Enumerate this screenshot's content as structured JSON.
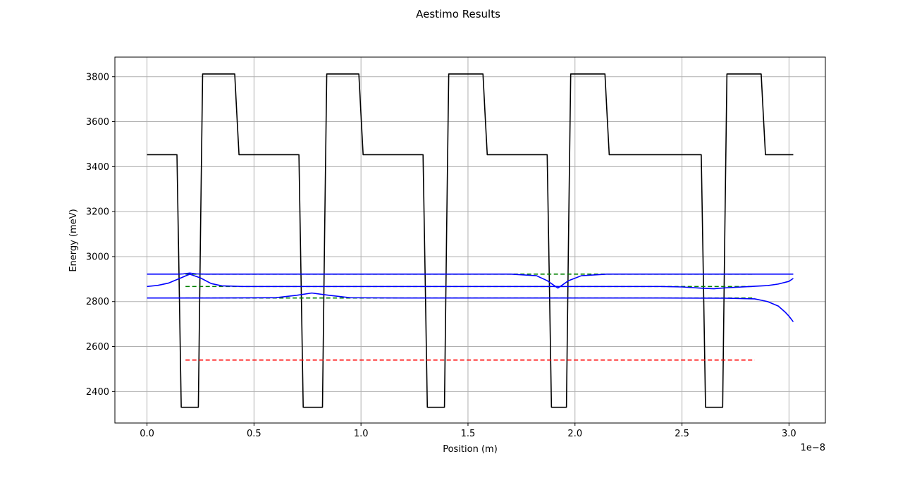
{
  "chart_data": {
    "type": "line",
    "title": "Aestimo Results",
    "xlabel": "Position (m)",
    "ylabel": "Energy (meV)",
    "x_offset_text": "1e−8",
    "xlim": [
      -0.15,
      3.17
    ],
    "ylim": [
      2260,
      3887
    ],
    "xticks": [
      0.0,
      0.5,
      1.0,
      1.5,
      2.0,
      2.5,
      3.0
    ],
    "xtick_labels": [
      "0.0",
      "0.5",
      "1.0",
      "1.5",
      "2.0",
      "2.5",
      "3.0"
    ],
    "yticks": [
      2400,
      2600,
      2800,
      3000,
      3200,
      3400,
      3600,
      3800
    ],
    "ytick_labels": [
      "2400",
      "2600",
      "2800",
      "3000",
      "3200",
      "3400",
      "3600",
      "3800"
    ],
    "grid": true,
    "colors": {
      "potential": "#000000",
      "wavefunction": "#0000ff",
      "level": "#008000",
      "fermi": "#ff0000",
      "grid": "#b0b0b0"
    },
    "series": [
      {
        "role": "potential",
        "style": "solid",
        "x": [
          0.0,
          0.14,
          0.15,
          0.16,
          0.24,
          0.25,
          0.26,
          0.41,
          0.42,
          0.43,
          0.71,
          0.72,
          0.73,
          0.82,
          0.83,
          0.84,
          0.99,
          1.0,
          1.01,
          1.29,
          1.3,
          1.31,
          1.39,
          1.4,
          1.41,
          1.57,
          1.58,
          1.59,
          1.87,
          1.88,
          1.89,
          1.96,
          1.97,
          1.98,
          2.14,
          2.15,
          2.16,
          2.59,
          2.6,
          2.61,
          2.69,
          2.7,
          2.71,
          2.87,
          2.88,
          2.89,
          3.02
        ],
        "y": [
          3453,
          3453,
          2900,
          2330,
          2330,
          3100,
          3812,
          3812,
          3630,
          3453,
          3453,
          2900,
          2330,
          2330,
          3100,
          3812,
          3812,
          3630,
          3453,
          3453,
          2900,
          2330,
          2330,
          3100,
          3812,
          3812,
          3630,
          3453,
          3453,
          2900,
          2330,
          2330,
          3100,
          3812,
          3812,
          3630,
          3453,
          3453,
          2900,
          2330,
          2330,
          3100,
          3812,
          3812,
          3630,
          3453,
          3453
        ]
      },
      {
        "role": "level",
        "style": "dashed",
        "x": [
          0.18,
          2.84
        ],
        "y": [
          2540,
          2540
        ],
        "color": "#ff0000"
      },
      {
        "role": "level",
        "style": "dashed",
        "x": [
          0.18,
          2.84
        ],
        "y": [
          2816,
          2816
        ],
        "color": "#008000"
      },
      {
        "role": "level",
        "style": "dashed",
        "x": [
          0.18,
          2.84
        ],
        "y": [
          2867,
          2867
        ],
        "color": "#008000"
      },
      {
        "role": "level",
        "style": "dashed",
        "x": [
          0.18,
          2.84
        ],
        "y": [
          2922,
          2922
        ],
        "color": "#008000"
      },
      {
        "role": "wavefunction",
        "style": "solid",
        "x": [
          0.0,
          0.3,
          0.6,
          0.7,
          0.77,
          0.85,
          0.95,
          1.2,
          1.5,
          1.8,
          2.1,
          2.4,
          2.7,
          2.84,
          2.9,
          2.95,
          2.98,
          3.0,
          3.02
        ],
        "y": [
          2816,
          2816,
          2817,
          2828,
          2838,
          2828,
          2817,
          2816,
          2816,
          2816,
          2816,
          2816,
          2815,
          2812,
          2800,
          2780,
          2755,
          2735,
          2710
        ]
      },
      {
        "role": "wavefunction",
        "style": "solid",
        "x": [
          0.0,
          0.05,
          0.1,
          0.15,
          0.2,
          0.25,
          0.3,
          0.35,
          0.45,
          0.7,
          1.0,
          1.5,
          2.0,
          2.4,
          2.5,
          2.6,
          2.65,
          2.7,
          2.8,
          2.9,
          2.95,
          3.0,
          3.02
        ],
        "y": [
          2867,
          2872,
          2882,
          2902,
          2922,
          2905,
          2880,
          2870,
          2867,
          2867,
          2867,
          2867,
          2867,
          2867,
          2865,
          2859,
          2857,
          2861,
          2866,
          2871,
          2878,
          2890,
          2903
        ]
      },
      {
        "role": "wavefunction",
        "style": "solid",
        "x": [
          0.0,
          0.15,
          0.17,
          0.2,
          0.23,
          0.27,
          0.35,
          0.6,
          1.0,
          1.4,
          1.7,
          1.82,
          1.87,
          1.92,
          1.97,
          2.03,
          2.15,
          2.4,
          2.7,
          3.0,
          3.02
        ],
        "y": [
          2922,
          2922,
          2923,
          2927,
          2923,
          2922,
          2922,
          2922,
          2922,
          2922,
          2922,
          2915,
          2893,
          2860,
          2893,
          2915,
          2922,
          2922,
          2922,
          2922,
          2922
        ]
      }
    ]
  }
}
